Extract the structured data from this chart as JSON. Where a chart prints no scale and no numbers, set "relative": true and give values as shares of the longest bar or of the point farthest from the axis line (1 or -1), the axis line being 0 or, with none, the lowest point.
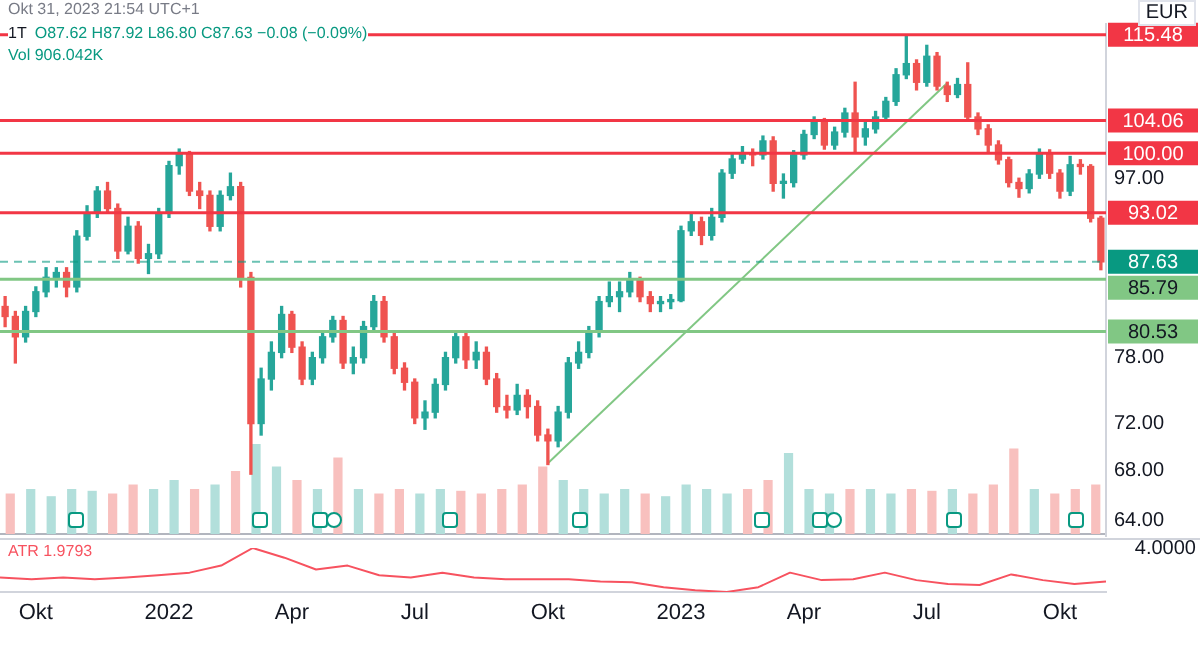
{
  "chart_data": [
    {
      "type": "candlestick",
      "title": "1T",
      "annotations": [
        "Okt 31, 2023 21:54 UTC+1",
        "O87.62 H87.92 L86.80 C87.63 −0.08 (−0.09%)",
        "Vol 906.042K",
        "EUR"
      ],
      "categories": [
        null,
        null,
        null,
        "Okt",
        null,
        null,
        null,
        null,
        null,
        null,
        null,
        null,
        null,
        null,
        null,
        null,
        "2022",
        null,
        null,
        null,
        null,
        null,
        null,
        null,
        null,
        null,
        null,
        null,
        "Apr",
        null,
        null,
        null,
        null,
        null,
        null,
        null,
        null,
        null,
        null,
        null,
        "Jul",
        null,
        null,
        null,
        null,
        null,
        null,
        null,
        null,
        null,
        null,
        null,
        null,
        "Okt",
        null,
        null,
        null,
        null,
        null,
        null,
        null,
        null,
        null,
        null,
        null,
        null,
        "2023",
        null,
        null,
        null,
        null,
        null,
        null,
        null,
        null,
        null,
        null,
        null,
        "Apr",
        null,
        null,
        null,
        null,
        null,
        null,
        null,
        null,
        null,
        null,
        null,
        "Jul",
        null,
        null,
        null,
        null,
        null,
        null,
        null,
        null,
        null,
        null,
        null,
        null,
        "Okt",
        null,
        null,
        null,
        null
      ],
      "ohlc": [
        [
          83,
          84,
          81,
          82
        ],
        [
          82,
          82.5,
          77.5,
          80
        ],
        [
          80,
          83,
          79.5,
          82.5
        ],
        [
          82.5,
          85,
          82,
          84.5
        ],
        [
          84.5,
          87,
          84,
          86
        ],
        [
          86,
          87,
          85,
          86.5
        ],
        [
          86.5,
          87,
          84,
          85
        ],
        [
          85,
          91,
          84.5,
          90.4
        ],
        [
          90.4,
          93.8,
          90,
          93
        ],
        [
          93,
          96,
          92.5,
          95.5
        ],
        [
          95.5,
          96.5,
          93,
          93.5
        ],
        [
          93.5,
          94,
          88,
          88.8
        ],
        [
          88.8,
          92.5,
          88.5,
          91.5
        ],
        [
          91.5,
          92,
          87.5,
          88
        ],
        [
          88,
          89.5,
          86.4,
          88.5
        ],
        [
          88.5,
          93.5,
          88,
          93
        ],
        [
          93,
          99,
          92.5,
          98.5
        ],
        [
          98.5,
          100.5,
          97.5,
          100
        ],
        [
          100,
          100.2,
          95,
          95.5
        ],
        [
          95.5,
          96.5,
          93.5,
          95
        ],
        [
          95,
          95.5,
          91,
          91.5
        ],
        [
          91.5,
          95.5,
          91,
          95
        ],
        [
          95,
          97.6,
          94.5,
          96
        ],
        [
          96,
          96.5,
          85,
          86
        ],
        [
          86,
          86.5,
          67.7,
          72
        ],
        [
          72,
          77,
          71,
          76
        ],
        [
          76,
          79.5,
          75,
          78.5
        ],
        [
          78.5,
          83,
          78,
          82.2
        ],
        [
          82.2,
          82.5,
          78.5,
          79
        ],
        [
          79,
          79.5,
          75.5,
          76
        ],
        [
          76,
          78.5,
          75.5,
          78
        ],
        [
          78,
          80.5,
          77.5,
          80
        ],
        [
          80,
          82,
          79.5,
          81.6
        ],
        [
          81.6,
          82,
          77,
          77.5
        ],
        [
          77.5,
          79,
          76.5,
          78
        ],
        [
          78,
          81.5,
          77.5,
          81
        ],
        [
          81,
          84.1,
          80.5,
          83.5
        ],
        [
          83.5,
          84,
          79.5,
          80
        ],
        [
          80,
          80.5,
          76.5,
          77
        ],
        [
          77,
          77.5,
          75,
          75.7
        ],
        [
          75.7,
          76,
          72,
          72.5
        ],
        [
          72.5,
          74,
          71.5,
          73
        ],
        [
          73,
          76,
          72.5,
          75.5
        ],
        [
          75.5,
          78.5,
          75,
          78
        ],
        [
          78,
          80.5,
          77.5,
          80
        ],
        [
          80,
          80.5,
          77,
          77.8
        ],
        [
          77.8,
          79.5,
          77,
          78.5
        ],
        [
          78.5,
          79,
          75.5,
          76
        ],
        [
          76,
          76.5,
          73,
          73.5
        ],
        [
          73.5,
          74.5,
          72.5,
          73.2
        ],
        [
          73.2,
          75.5,
          72.8,
          74.5
        ],
        [
          74.5,
          75,
          72.5,
          73.5
        ],
        [
          73.5,
          74,
          70.5,
          71
        ],
        [
          71,
          71.5,
          68.5,
          70.5
        ],
        [
          70.5,
          73.5,
          70,
          73
        ],
        [
          73,
          78,
          72.5,
          77.5
        ],
        [
          77.5,
          79.5,
          77,
          78.5
        ],
        [
          78.5,
          81,
          78,
          80.5
        ],
        [
          80.5,
          84,
          80,
          83.5
        ],
        [
          83.5,
          85.5,
          83,
          84
        ],
        [
          84,
          85.5,
          82.5,
          84.5
        ],
        [
          84.5,
          86.5,
          84,
          85.8
        ],
        [
          85.8,
          86,
          83.5,
          84
        ],
        [
          84,
          84.5,
          82.5,
          83.3
        ],
        [
          83.3,
          84,
          82.5,
          83.5
        ],
        [
          83.5,
          84.2,
          82.8,
          83.6
        ],
        [
          83.6,
          91.5,
          83.5,
          91
        ],
        [
          91,
          93,
          90.5,
          92
        ],
        [
          92,
          92.5,
          89.5,
          90.5
        ],
        [
          90.5,
          93.5,
          90,
          92.5
        ],
        [
          92.5,
          98,
          92,
          97.6
        ],
        [
          97.6,
          100,
          97,
          99.3
        ],
        [
          99.3,
          100.8,
          98.8,
          100
        ],
        [
          100,
          100.5,
          98.5,
          99.8
        ],
        [
          99.8,
          102.1,
          99.3,
          101.5
        ],
        [
          101.5,
          102,
          95.5,
          96.4
        ],
        [
          96.4,
          97.5,
          94.7,
          96.5
        ],
        [
          96.5,
          100.3,
          96,
          99.8
        ],
        [
          99.8,
          102.8,
          99.3,
          102.3
        ],
        [
          102.3,
          104.5,
          101.8,
          104
        ],
        [
          104,
          104.3,
          100.5,
          101
        ],
        [
          101,
          103.2,
          100.5,
          102.6
        ],
        [
          102.6,
          105.6,
          102,
          105
        ],
        [
          105,
          109,
          100.1,
          102
        ],
        [
          102,
          104,
          101,
          103
        ],
        [
          103,
          105.2,
          102.5,
          104.5
        ],
        [
          104.5,
          107,
          104,
          106.5
        ],
        [
          106.5,
          110.8,
          106,
          110
        ],
        [
          110,
          115.48,
          109.5,
          111.5
        ],
        [
          111.5,
          112,
          108,
          109
        ],
        [
          109,
          114,
          108.5,
          112.5
        ],
        [
          112.5,
          113,
          108,
          108.5
        ],
        [
          108.5,
          109,
          106.5,
          107.4
        ],
        [
          107.4,
          109.5,
          107,
          108.7
        ],
        [
          108.7,
          111.6,
          104,
          104.5
        ],
        [
          104.5,
          105,
          102.3,
          103
        ],
        [
          103,
          103.5,
          100.2,
          101
        ],
        [
          101,
          101.5,
          98.7,
          99.2
        ],
        [
          99.2,
          99.5,
          96,
          96.5
        ],
        [
          96.5,
          97,
          94.8,
          95.8
        ],
        [
          95.8,
          98,
          95.3,
          97.5
        ],
        [
          97.5,
          100.5,
          97,
          100
        ],
        [
          100,
          100.4,
          97,
          97.6
        ],
        [
          97.6,
          98,
          94.7,
          95.5
        ],
        [
          95.5,
          99.6,
          95,
          98.6
        ],
        [
          98.6,
          99.2,
          97.5,
          98.4
        ],
        [
          98.4,
          98.6,
          92,
          92.4
        ],
        [
          92.4,
          92.6,
          86.8,
          87.63
        ]
      ],
      "colors": [
        "#ef5350",
        "#ef5350",
        "#26a69a",
        "#26a69a",
        "#26a69a",
        "#26a69a",
        "#ef5350",
        "#26a69a",
        "#26a69a",
        "#26a69a",
        "#ef5350",
        "#ef5350",
        "#26a69a",
        "#ef5350",
        "#26a69a",
        "#26a69a",
        "#26a69a",
        "#26a69a",
        "#ef5350",
        "#ef5350",
        "#ef5350",
        "#26a69a",
        "#26a69a",
        "#ef5350",
        "#ef5350",
        "#26a69a",
        "#26a69a",
        "#26a69a",
        "#ef5350",
        "#ef5350",
        "#26a69a",
        "#26a69a",
        "#26a69a",
        "#ef5350",
        "#26a69a",
        "#26a69a",
        "#26a69a",
        "#ef5350",
        "#ef5350",
        "#ef5350",
        "#ef5350",
        "#26a69a",
        "#26a69a",
        "#26a69a",
        "#26a69a",
        "#ef5350",
        "#26a69a",
        "#ef5350",
        "#ef5350",
        "#ef5350",
        "#26a69a",
        "#ef5350",
        "#ef5350",
        "#ef5350",
        "#26a69a",
        "#26a69a",
        "#26a69a",
        "#26a69a",
        "#26a69a",
        "#26a69a",
        "#26a69a",
        "#26a69a",
        "#ef5350",
        "#ef5350",
        "#26a69a",
        "#26a69a",
        "#26a69a",
        "#26a69a",
        "#ef5350",
        "#26a69a",
        "#26a69a",
        "#26a69a",
        "#26a69a",
        "#ef5350",
        "#26a69a",
        "#ef5350",
        "#26a69a",
        "#26a69a",
        "#26a69a",
        "#26a69a",
        "#ef5350",
        "#26a69a",
        "#26a69a",
        "#ef5350",
        "#26a69a",
        "#26a69a",
        "#26a69a",
        "#26a69a",
        "#26a69a",
        "#ef5350",
        "#26a69a",
        "#ef5350",
        "#ef5350",
        "#26a69a",
        "#ef5350",
        "#ef5350",
        "#ef5350",
        "#ef5350",
        "#ef5350",
        "#ef5350",
        "#26a69a",
        "#26a69a",
        "#ef5350",
        "#ef5350",
        "#26a69a",
        "#ef5350",
        "#ef5350",
        "#ef5350"
      ],
      "series": [
        {
          "type": "line",
          "color": "#81c784",
          "values": [
            null,
            null,
            null,
            null,
            null,
            null,
            null,
            null,
            null,
            null,
            null,
            null,
            null,
            null,
            null,
            null,
            null,
            null,
            null,
            null,
            null,
            null,
            null,
            null,
            null,
            null,
            null,
            null,
            null,
            null,
            null,
            null,
            null,
            null,
            null,
            null,
            null,
            null,
            null,
            null,
            null,
            null,
            null,
            null,
            null,
            null,
            null,
            null,
            null,
            null,
            null,
            null,
            null,
            68.6,
            null,
            null,
            null,
            null,
            null,
            null,
            null,
            null,
            null,
            null,
            null,
            null,
            null,
            null,
            null,
            null,
            null,
            null,
            null,
            null,
            null,
            null,
            null,
            null,
            null,
            null,
            null,
            null,
            null,
            null,
            null,
            null,
            null,
            null,
            null,
            null,
            null,
            null,
            108.9,
            null,
            null,
            null,
            null,
            null,
            null,
            null,
            null,
            null,
            null,
            null,
            null,
            null,
            null,
            null
          ]
        }
      ],
      "marker": "none",
      "log": true,
      "ylim": [
        62.8,
        117
      ],
      "yticks": [
        {
          "value": 64,
          "label": "64.00"
        },
        {
          "value": 68,
          "label": "68.00"
        },
        {
          "value": 72,
          "label": "72.00"
        },
        {
          "value": 78,
          "label": "78.00"
        },
        {
          "value": 97,
          "label": "97.00"
        }
      ],
      "ref_lines": [
        {
          "axis": "y",
          "value": 115.48,
          "label": "115.48",
          "color": "#f23645"
        },
        {
          "axis": "y",
          "value": 104.06,
          "label": "104.06",
          "color": "#f23645"
        },
        {
          "axis": "y",
          "value": 100,
          "label": "100.00",
          "color": "#f23645"
        },
        {
          "axis": "y",
          "value": 93.02,
          "label": "93.02",
          "color": "#f23645"
        },
        {
          "axis": "y",
          "value": 87.63,
          "label": "87.63",
          "color": "#089981",
          "line_style": "dashed"
        },
        {
          "axis": "y",
          "value": 85.79,
          "label": "85.79",
          "color": "#81c784"
        },
        {
          "axis": "y",
          "value": 80.53,
          "label": "80.53",
          "color": "#81c784"
        }
      ]
    },
    {
      "type": "bar",
      "relative": true,
      "categories": [
        null,
        null,
        null,
        null,
        null,
        null,
        null,
        null,
        null,
        null,
        null,
        null,
        null,
        null,
        null,
        null,
        null,
        null,
        null,
        null,
        null,
        null,
        null,
        null,
        null,
        null,
        null,
        null,
        null,
        null,
        null,
        null,
        null,
        null,
        null,
        null,
        null,
        null,
        null,
        null,
        null,
        null,
        null,
        null,
        null,
        null,
        null,
        null,
        null,
        null,
        null,
        null,
        null,
        null
      ],
      "values": [
        0.45,
        0.5,
        0.42,
        0.5,
        0.48,
        0.45,
        0.55,
        0.5,
        0.6,
        0.5,
        0.55,
        0.7,
        1,
        0.75,
        0.6,
        0.5,
        0.85,
        0.5,
        0.45,
        0.5,
        0.45,
        0.5,
        0.48,
        0.45,
        0.5,
        0.55,
        0.75,
        0.6,
        0.5,
        0.45,
        0.5,
        0.45,
        0.42,
        0.55,
        0.5,
        0.45,
        0.5,
        0.6,
        0.9,
        0.5,
        0.45,
        0.5,
        0.5,
        0.45,
        0.5,
        0.48,
        0.5,
        0.45,
        0.55,
        0.95,
        0.5,
        0.45,
        0.5,
        0.55
      ],
      "colors": [
        "#f8c0be",
        "#b2dfdb",
        "#b2dfdb",
        "#b2dfdb",
        "#b2dfdb",
        "#f8c0be",
        "#f8c0be",
        "#b2dfdb",
        "#b2dfdb",
        "#f8c0be",
        "#b2dfdb",
        "#f8c0be",
        "#b2dfdb",
        "#b2dfdb",
        "#f8c0be",
        "#b2dfdb",
        "#f8c0be",
        "#b2dfdb",
        "#f8c0be",
        "#f8c0be",
        "#b2dfdb",
        "#b2dfdb",
        "#f8c0be",
        "#f8c0be",
        "#f8c0be",
        "#f8c0be",
        "#f8c0be",
        "#b2dfdb",
        "#b2dfdb",
        "#b2dfdb",
        "#b2dfdb",
        "#f8c0be",
        "#b2dfdb",
        "#b2dfdb",
        "#b2dfdb",
        "#b2dfdb",
        "#f8c0be",
        "#f8c0be",
        "#b2dfdb",
        "#b2dfdb",
        "#b2dfdb",
        "#f8c0be",
        "#b2dfdb",
        "#b2dfdb",
        "#f8c0be",
        "#f8c0be",
        "#b2dfdb",
        "#f8c0be",
        "#f8c0be",
        "#f8c0be",
        "#b2dfdb",
        "#f8c0be",
        "#f8c0be",
        "#f8c0be"
      ]
    },
    {
      "type": "line",
      "relative": true,
      "marker": "none",
      "annotations": [
        "ATR 1.9793",
        "4.0000"
      ],
      "categories": [
        null,
        null,
        null,
        null,
        null,
        null,
        null,
        null,
        null,
        null,
        null,
        null,
        null,
        null,
        null,
        null,
        null,
        null,
        null,
        null,
        null,
        null,
        null,
        null,
        null,
        null,
        null,
        null,
        null,
        null,
        null,
        null,
        null,
        null,
        null,
        null
      ],
      "series": [
        {
          "color": "#f7525f",
          "values": [
            0.33,
            0.29,
            0.33,
            0.29,
            0.33,
            0.38,
            0.44,
            0.6,
            1,
            0.78,
            0.51,
            0.6,
            0.38,
            0.33,
            0.44,
            0.33,
            0.29,
            0.29,
            0.29,
            0.24,
            0.22,
            0.11,
            0.04,
            0,
            0.11,
            0.44,
            0.27,
            0.29,
            0.44,
            0.27,
            0.18,
            0.16,
            0.4,
            0.27,
            0.18,
            0.24
          ]
        }
      ]
    }
  ]
}
